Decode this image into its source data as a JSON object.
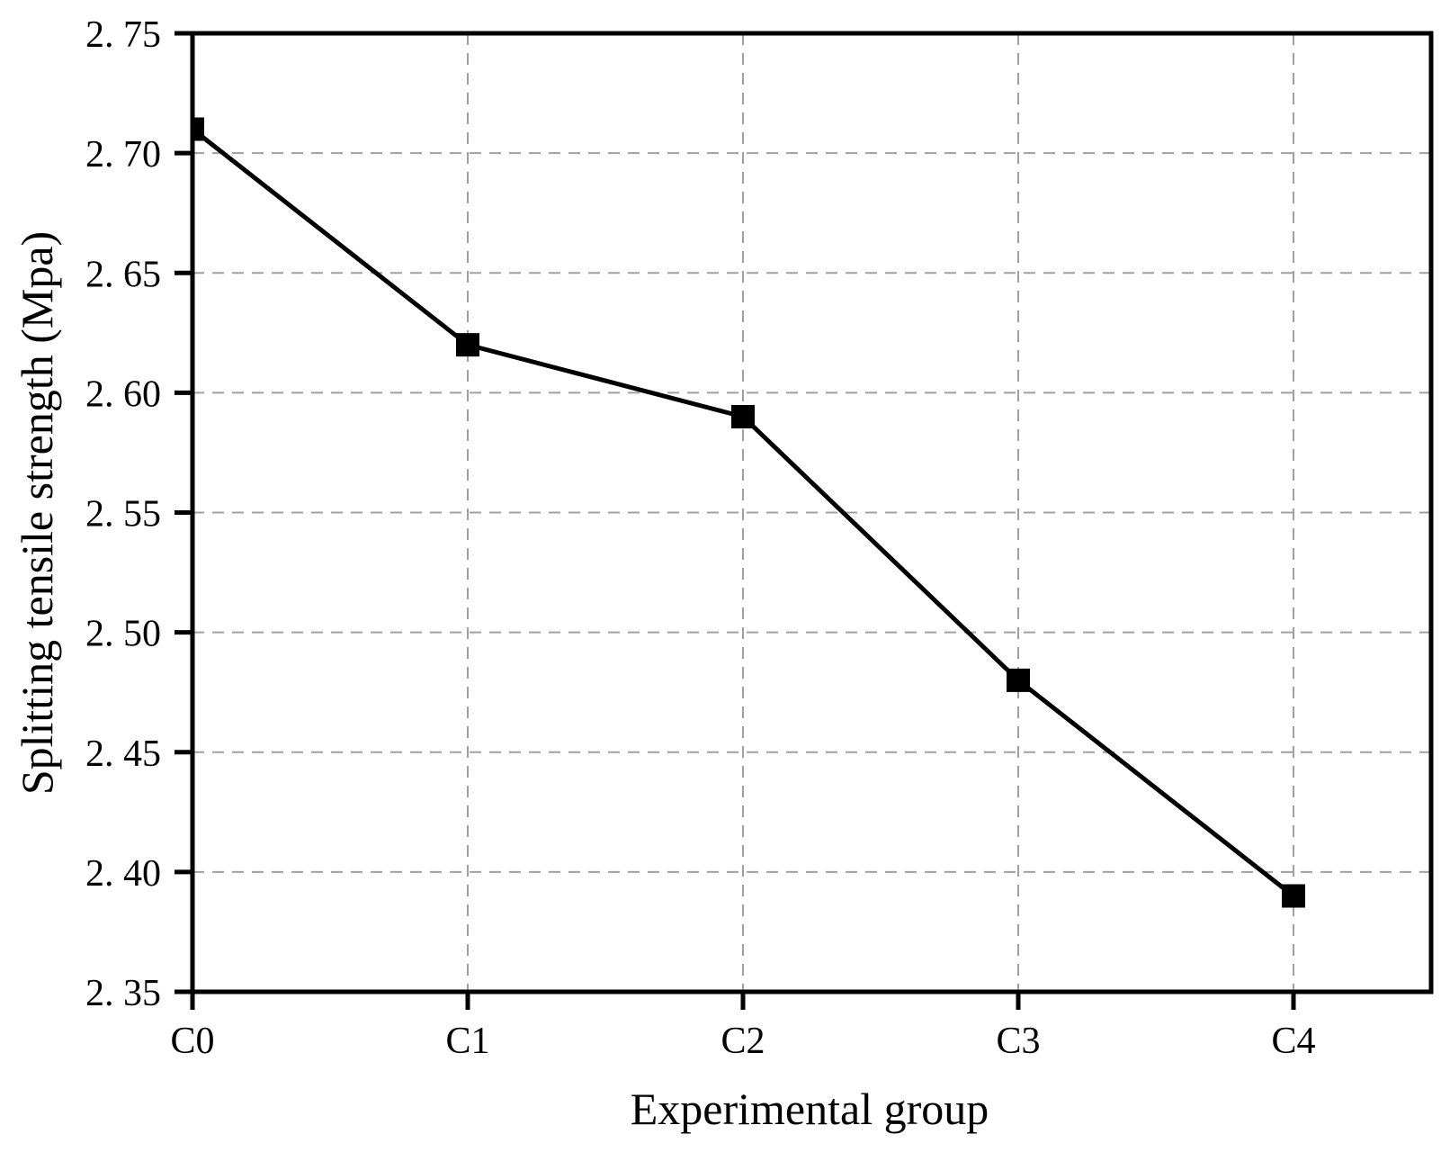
{
  "figure": {
    "background": "#ffffff",
    "title": ""
  },
  "chart_data": {
    "type": "line",
    "title": "",
    "xlabel": "Experimental group",
    "ylabel": "Splitting tensile strength (Mpa)",
    "categories": [
      "C0",
      "C1",
      "C2",
      "C3",
      "C4"
    ],
    "series": [
      {
        "name": "Splitting tensile strength",
        "values": [
          2.71,
          2.62,
          2.59,
          2.48,
          2.39
        ]
      }
    ],
    "ylim": [
      2.35,
      2.75
    ],
    "ytick_step": 0.05,
    "ytick_values": [
      2.35,
      2.4,
      2.45,
      2.5,
      2.55,
      2.6,
      2.65,
      2.7,
      2.75
    ],
    "ytick_labels": [
      "2. 35",
      "2. 40",
      "2. 45",
      "2. 50",
      "2. 55",
      "2. 60",
      "2. 65",
      "2. 70",
      "2. 75"
    ],
    "x_axis_units_max": 4.5,
    "grid": "dashed horizontal lines at y ticks, dashed vertical lines at C1-C4",
    "legend": "none",
    "marker": "filled-square",
    "line_color": "#000000",
    "marker_color": "#000000",
    "grid_color": "#a0a0a0",
    "axis_color": "#000000",
    "text_color": "#000000"
  }
}
